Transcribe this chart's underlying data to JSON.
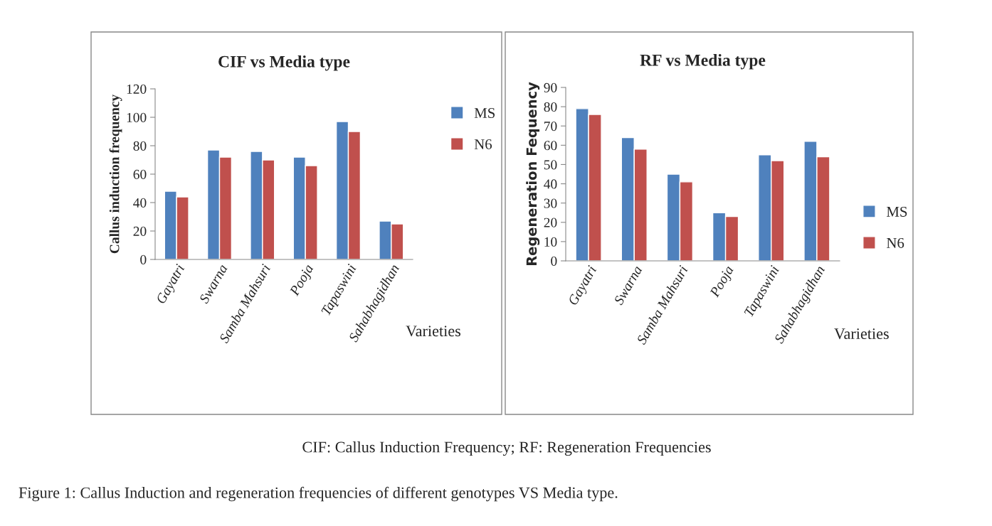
{
  "chart_data": [
    {
      "type": "bar",
      "title": "CIF vs Media type",
      "xlabel": "Varieties",
      "ylabel": "Callus induction frequency",
      "categories": [
        "Gayatri",
        "Swarna",
        "Samba Mahsuri",
        "Pooja",
        "Tapaswini",
        "Sahabhagidhan"
      ],
      "series": [
        {
          "name": "MS",
          "color": "#4f81bd",
          "values": [
            48,
            77,
            76,
            72,
            97,
            27
          ]
        },
        {
          "name": "N6",
          "color": "#c0504d",
          "values": [
            44,
            72,
            70,
            66,
            90,
            25
          ]
        }
      ],
      "ylim": [
        0,
        120
      ],
      "yticks": [
        0,
        20,
        40,
        60,
        80,
        100,
        120
      ],
      "grid": false,
      "legend": "right"
    },
    {
      "type": "bar",
      "title": "RF vs Media type",
      "xlabel": "Varieties",
      "ylabel": "Regeneration Fequency",
      "categories": [
        "Gayatri",
        "Swarna",
        "Samba Mahsuri",
        "Pooja",
        "Tapaswini",
        "Sahabhagidhan"
      ],
      "series": [
        {
          "name": "MS",
          "color": "#4f81bd",
          "values": [
            79,
            64,
            45,
            25,
            55,
            62
          ]
        },
        {
          "name": "N6",
          "color": "#c0504d",
          "values": [
            76,
            58,
            41,
            23,
            52,
            54
          ]
        }
      ],
      "ylim": [
        0,
        90
      ],
      "yticks": [
        0,
        10,
        20,
        30,
        40,
        50,
        60,
        70,
        80,
        90
      ],
      "grid": false,
      "legend": "bottom right",
      "annotations": [
        "CIF: Callus Induction Frequency; RF: Regeneration Frequencies",
        "Figure 1: Callus Induction and regeneration frequencies of different genotypes VS Media type."
      ]
    }
  ]
}
